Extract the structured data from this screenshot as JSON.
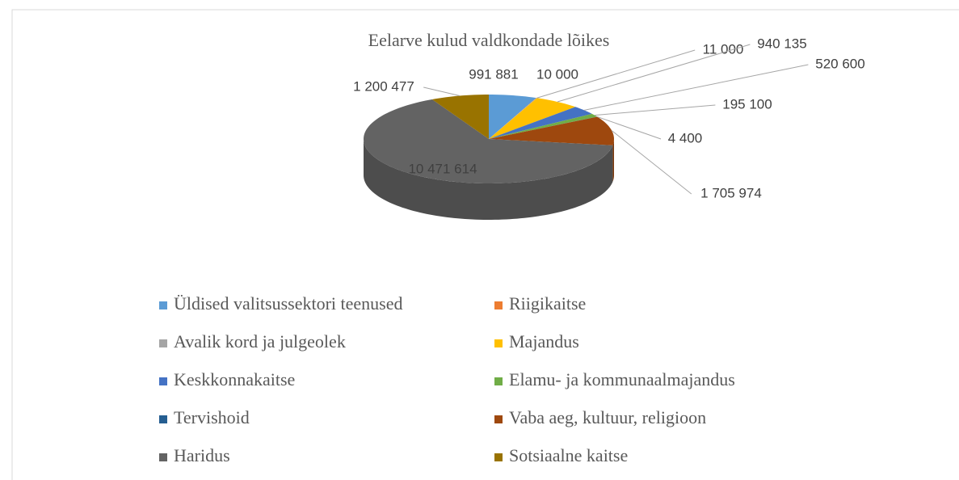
{
  "chart_data": {
    "type": "pie3d",
    "title": "Eelarve kulud  valdkondade lõikes",
    "categories": [
      "Üldised valitsussektori teenused",
      "Riigikaitse",
      "Avalik kord ja julgeolek",
      "Majandus",
      "Keskkonnakaitse",
      "Elamu- ja kommunaalmajandus",
      "Tervishoid",
      "Vaba aeg, kultuur, religioon",
      "Haridus",
      "Sotsiaalne kaitse"
    ],
    "values": [
      991881,
      10000,
      11000,
      940135,
      520600,
      195100,
      4400,
      1705974,
      10471614,
      1200477
    ],
    "value_labels": [
      "991 881",
      "10 000",
      "11 000",
      "940 135",
      "520 600",
      "195 100",
      "4 400",
      "1 705 974",
      "10 471 614",
      "1 200 477"
    ],
    "colors": [
      "#5b9bd5",
      "#ed7d31",
      "#a5a5a5",
      "#ffc000",
      "#4472c4",
      "#70ad47",
      "#255e91",
      "#9e480e",
      "#636363",
      "#997300"
    ],
    "legend": "bottom"
  }
}
